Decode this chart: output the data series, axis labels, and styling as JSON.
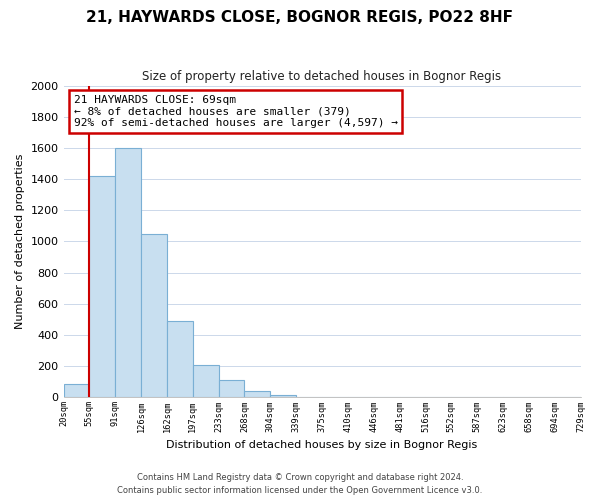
{
  "title": "21, HAYWARDS CLOSE, BOGNOR REGIS, PO22 8HF",
  "subtitle": "Size of property relative to detached houses in Bognor Regis",
  "xlabel": "Distribution of detached houses by size in Bognor Regis",
  "ylabel": "Number of detached properties",
  "bin_labels": [
    "20sqm",
    "55sqm",
    "91sqm",
    "126sqm",
    "162sqm",
    "197sqm",
    "233sqm",
    "268sqm",
    "304sqm",
    "339sqm",
    "375sqm",
    "410sqm",
    "446sqm",
    "481sqm",
    "516sqm",
    "552sqm",
    "587sqm",
    "623sqm",
    "658sqm",
    "694sqm",
    "729sqm"
  ],
  "bar_values": [
    85,
    1420,
    1600,
    1050,
    490,
    205,
    110,
    40,
    15,
    0,
    0,
    0,
    0,
    0,
    0,
    0,
    0,
    0,
    0,
    0
  ],
  "bar_color": "#c8dff0",
  "bar_edge_color": "#7aafd4",
  "annotation_title": "21 HAYWARDS CLOSE: 69sqm",
  "annotation_line1": "← 8% of detached houses are smaller (379)",
  "annotation_line2": "92% of semi-detached houses are larger (4,597) →",
  "annotation_box_color": "#ffffff",
  "annotation_box_edge": "#cc0000",
  "property_line_color": "#cc0000",
  "ylim": [
    0,
    2000
  ],
  "yticks": [
    0,
    200,
    400,
    600,
    800,
    1000,
    1200,
    1400,
    1600,
    1800,
    2000
  ],
  "footer_line1": "Contains HM Land Registry data © Crown copyright and database right 2024.",
  "footer_line2": "Contains public sector information licensed under the Open Government Licence v3.0.",
  "background_color": "#ffffff",
  "grid_color": "#ccd8ea"
}
